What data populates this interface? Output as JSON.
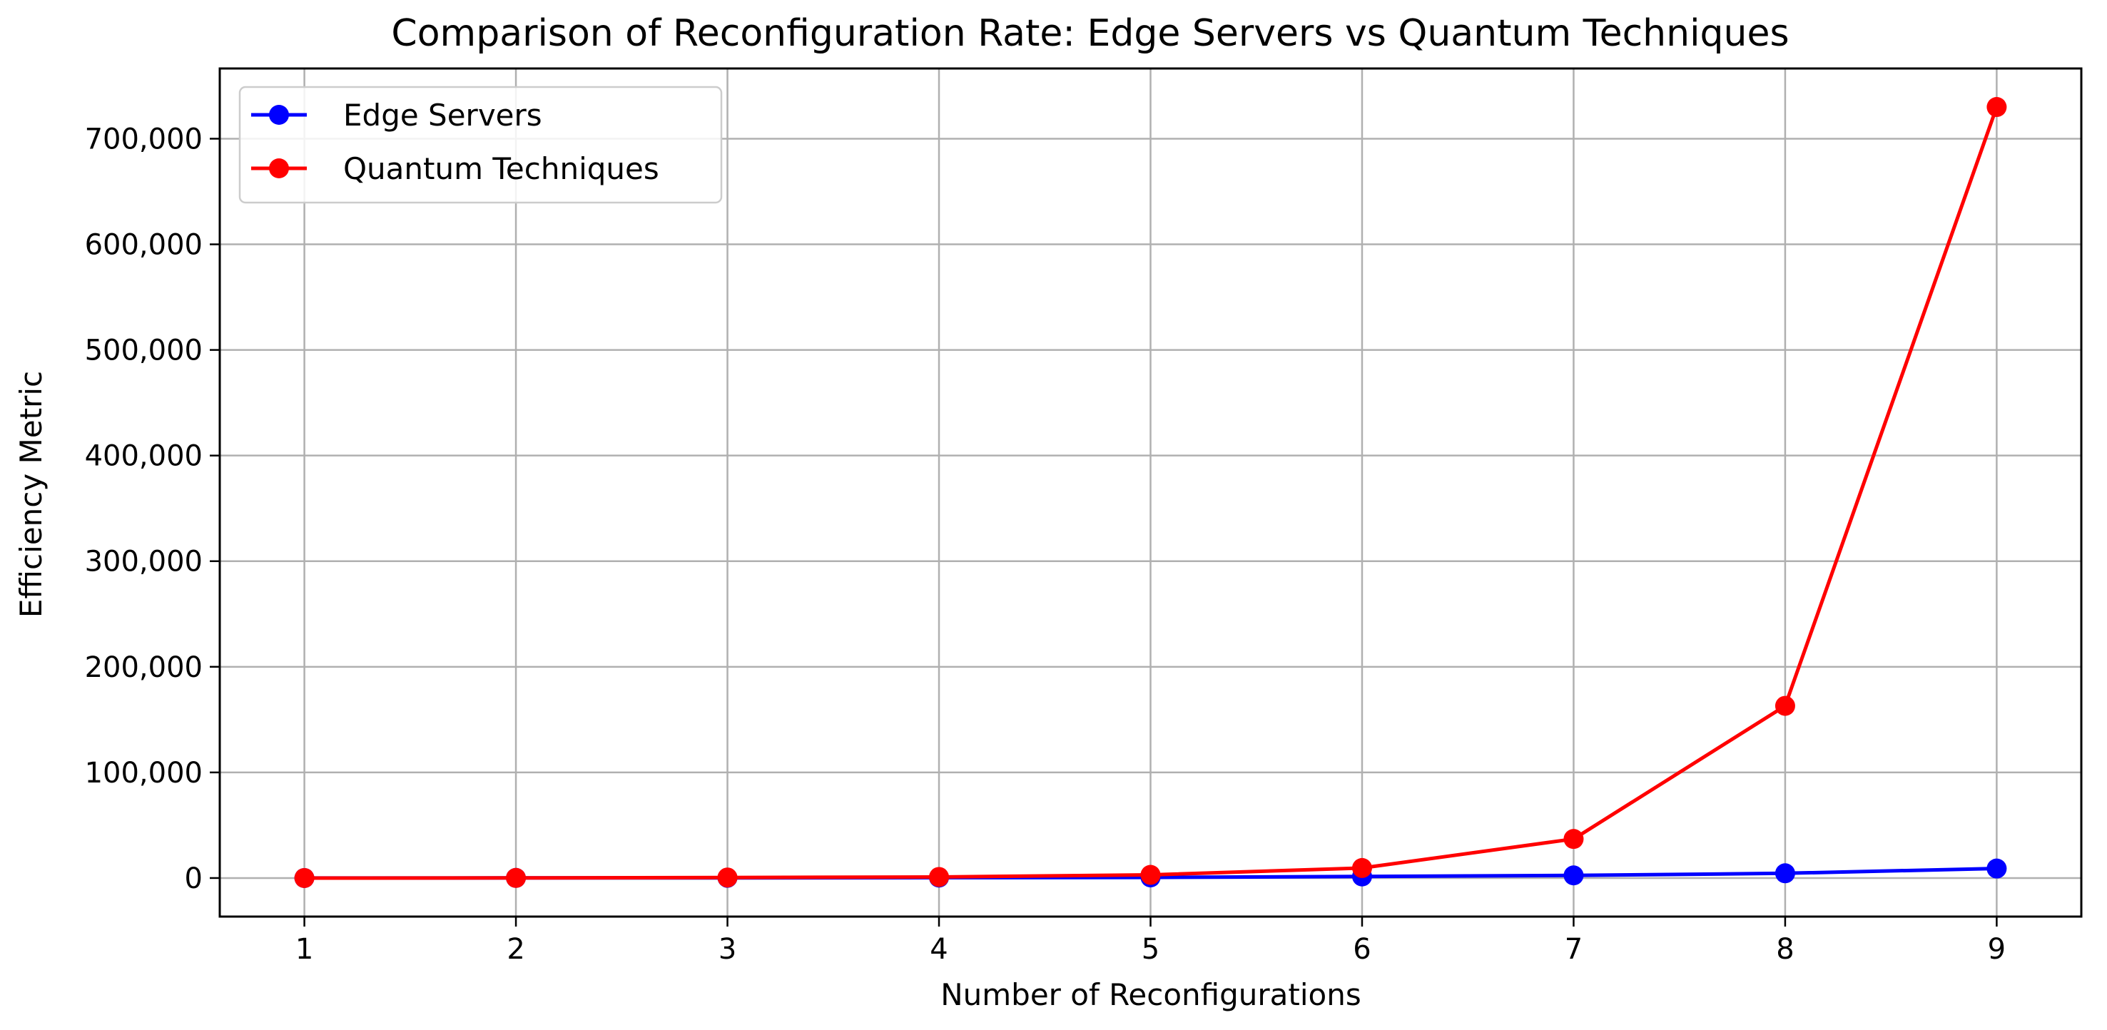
{
  "chart_data": {
    "type": "line",
    "title": "Comparison of Reconfiguration Rate: Edge Servers vs Quantum Techniques",
    "xlabel": "Number of Reconfigurations",
    "ylabel": "Efficiency Metric",
    "x": [
      1,
      2,
      3,
      4,
      5,
      6,
      7,
      8,
      9
    ],
    "xlim": [
      0.6,
      9.4
    ],
    "ylim": [
      -36500,
      766500
    ],
    "x_ticks": [
      "1",
      "2",
      "3",
      "4",
      "5",
      "6",
      "7",
      "8",
      "9"
    ],
    "y_ticks": [
      {
        "value": 0,
        "label": "0"
      },
      {
        "value": 100000,
        "label": "100,000"
      },
      {
        "value": 200000,
        "label": "200,000"
      },
      {
        "value": 300000,
        "label": "300,000"
      },
      {
        "value": 400000,
        "label": "400,000"
      },
      {
        "value": 500000,
        "label": "500,000"
      },
      {
        "value": 600000,
        "label": "600,000"
      },
      {
        "value": 700000,
        "label": "700,000"
      }
    ],
    "grid": true,
    "legend_position": "top-left",
    "series": [
      {
        "name": "Edge Servers",
        "color": "#0000ff",
        "marker": "circle",
        "values": [
          10,
          100,
          200,
          400,
          600,
          1500,
          2500,
          4500,
          9000
        ]
      },
      {
        "name": "Quantum Techniques",
        "color": "#ff0000",
        "marker": "circle",
        "values": [
          1,
          100,
          500,
          1000,
          3000,
          9500,
          37000,
          163000,
          730000
        ]
      }
    ]
  }
}
